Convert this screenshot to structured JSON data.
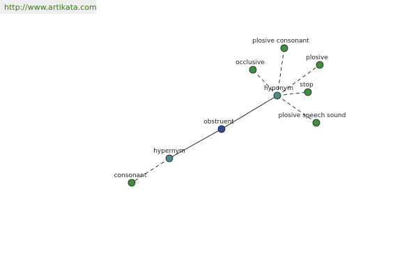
{
  "header": {
    "url": "http://www.artikata.com"
  },
  "nodes": [
    {
      "label": "obstruent"
    },
    {
      "label": "hypernym"
    },
    {
      "label": "hyponym"
    },
    {
      "label": "consonant"
    },
    {
      "label": "occlusive"
    },
    {
      "label": "plosive consonant"
    },
    {
      "label": "plosive"
    },
    {
      "label": "stop"
    },
    {
      "label": "plosive speech sound"
    }
  ]
}
